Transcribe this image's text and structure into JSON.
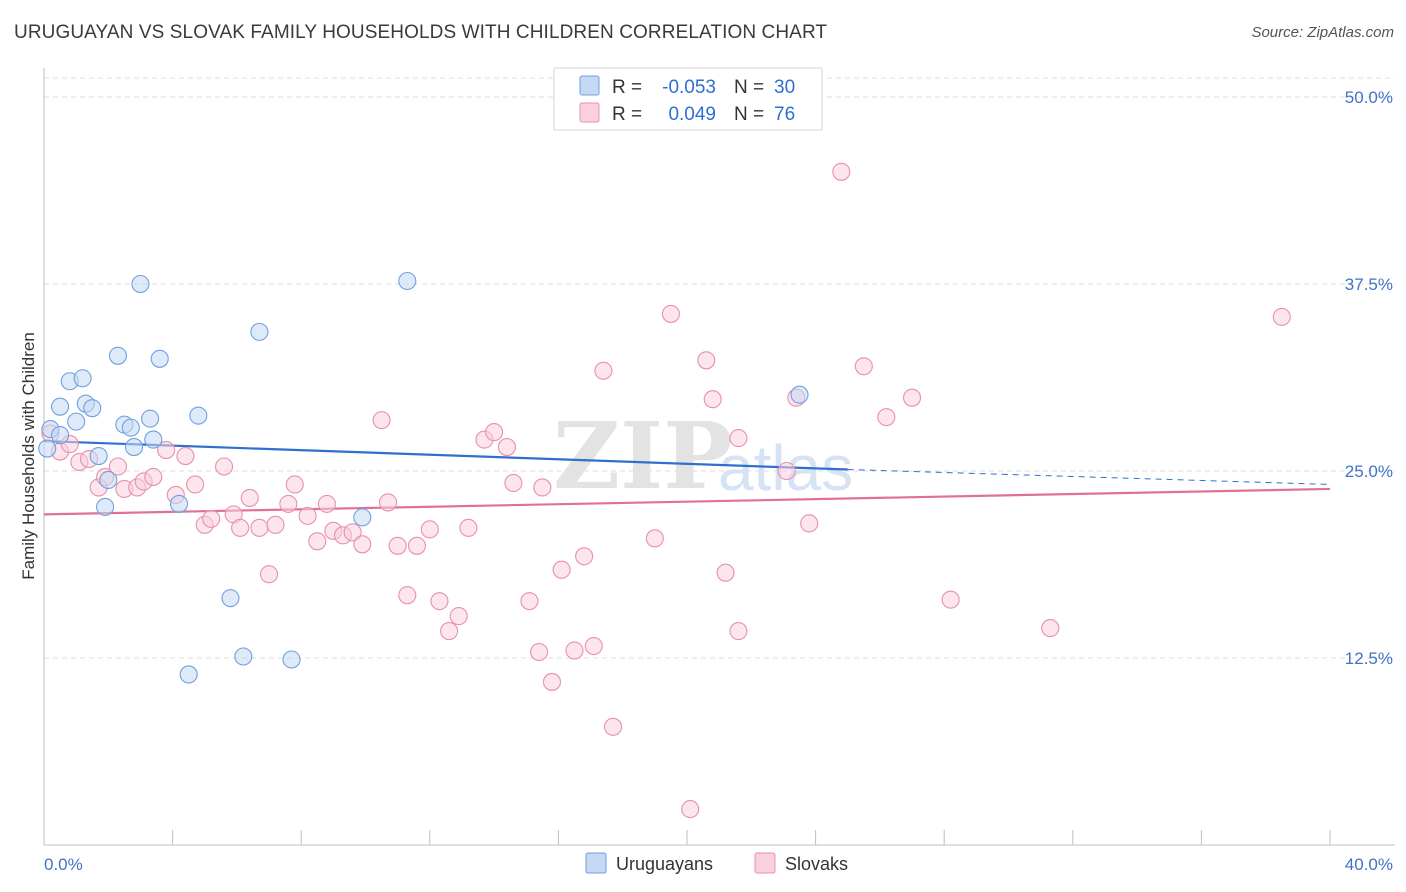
{
  "title": "URUGUAYAN VS SLOVAK FAMILY HOUSEHOLDS WITH CHILDREN CORRELATION CHART",
  "source": "Source: ZipAtlas.com",
  "watermark": {
    "part1": "ZIP",
    "part2": "atlas"
  },
  "legend": {
    "r_label": "R =",
    "n_label": "N =",
    "rows": [
      {
        "name": "Uruguayans",
        "r": "-0.053",
        "n": "30",
        "color": "#aac8f0"
      },
      {
        "name": "Slovaks",
        "r": "0.049",
        "n": "76",
        "color": "#f5b8cc"
      }
    ]
  },
  "chart_data": {
    "type": "scatter",
    "title": "URUGUAYAN VS SLOVAK FAMILY HOUSEHOLDS WITH CHILDREN CORRELATION CHART",
    "xlabel": "",
    "ylabel": "Family Households with Children",
    "xlim": [
      0,
      40
    ],
    "ylim": [
      0,
      50
    ],
    "x_tick_labels": [
      "0.0%",
      "40.0%"
    ],
    "y_ticks": [
      12.5,
      25.0,
      37.5,
      50.0
    ],
    "y_tick_labels": [
      "12.5%",
      "25.0%",
      "37.5%",
      "50.0%"
    ],
    "series": [
      {
        "name": "Uruguayans",
        "color": "#6fa0e0",
        "fill": "#c5d9f4",
        "trend": {
          "x0": 0,
          "y0": 27.0,
          "x1": 25,
          "y1": 25.1,
          "dash_to_x": 40,
          "dash_to_y": 24.1,
          "color": "#2f6fd0"
        },
        "points": [
          [
            0.1,
            26.5
          ],
          [
            0.2,
            27.8
          ],
          [
            0.5,
            27.4
          ],
          [
            0.5,
            29.3
          ],
          [
            0.8,
            31.0
          ],
          [
            1.0,
            28.3
          ],
          [
            1.2,
            31.2
          ],
          [
            1.3,
            29.5
          ],
          [
            1.5,
            29.2
          ],
          [
            1.7,
            26.0
          ],
          [
            1.9,
            22.6
          ],
          [
            2.0,
            24.4
          ],
          [
            2.3,
            32.7
          ],
          [
            2.5,
            28.1
          ],
          [
            2.7,
            27.9
          ],
          [
            2.8,
            26.6
          ],
          [
            3.0,
            37.5
          ],
          [
            3.3,
            28.5
          ],
          [
            3.4,
            27.1
          ],
          [
            3.6,
            32.5
          ],
          [
            4.2,
            22.8
          ],
          [
            4.5,
            11.4
          ],
          [
            4.8,
            28.7
          ],
          [
            5.8,
            16.5
          ],
          [
            6.2,
            12.6
          ],
          [
            6.7,
            34.3
          ],
          [
            7.7,
            12.4
          ],
          [
            9.9,
            21.9
          ],
          [
            11.3,
            37.7
          ],
          [
            23.5,
            30.1
          ]
        ]
      },
      {
        "name": "Slovaks",
        "color": "#e890ac",
        "fill": "#fad0dc",
        "trend": {
          "x0": 0,
          "y0": 22.1,
          "x1": 40,
          "y1": 23.8,
          "color": "#e07098"
        },
        "points": [
          [
            0.2,
            27.5
          ],
          [
            0.5,
            26.3
          ],
          [
            0.8,
            26.8
          ],
          [
            1.1,
            25.6
          ],
          [
            1.4,
            25.8
          ],
          [
            1.7,
            23.9
          ],
          [
            1.9,
            24.6
          ],
          [
            2.3,
            25.3
          ],
          [
            2.5,
            23.8
          ],
          [
            2.9,
            23.9
          ],
          [
            3.1,
            24.3
          ],
          [
            3.4,
            24.6
          ],
          [
            3.8,
            26.4
          ],
          [
            4.1,
            23.4
          ],
          [
            4.4,
            26.0
          ],
          [
            4.7,
            24.1
          ],
          [
            5.0,
            21.4
          ],
          [
            5.2,
            21.8
          ],
          [
            5.6,
            25.3
          ],
          [
            5.9,
            22.1
          ],
          [
            6.1,
            21.2
          ],
          [
            6.4,
            23.2
          ],
          [
            6.7,
            21.2
          ],
          [
            7.0,
            18.1
          ],
          [
            7.2,
            21.4
          ],
          [
            7.6,
            22.8
          ],
          [
            7.8,
            24.1
          ],
          [
            8.2,
            22.0
          ],
          [
            8.5,
            20.3
          ],
          [
            8.8,
            22.8
          ],
          [
            9.0,
            21.0
          ],
          [
            9.3,
            20.7
          ],
          [
            9.6,
            20.9
          ],
          [
            9.9,
            20.1
          ],
          [
            10.5,
            28.4
          ],
          [
            10.7,
            22.9
          ],
          [
            11.0,
            20.0
          ],
          [
            11.3,
            16.7
          ],
          [
            11.6,
            20.0
          ],
          [
            12.0,
            21.1
          ],
          [
            12.3,
            16.3
          ],
          [
            12.6,
            14.3
          ],
          [
            12.9,
            15.3
          ],
          [
            13.2,
            21.2
          ],
          [
            13.7,
            27.1
          ],
          [
            14.0,
            27.6
          ],
          [
            14.4,
            26.6
          ],
          [
            14.6,
            24.2
          ],
          [
            15.1,
            16.3
          ],
          [
            15.4,
            12.9
          ],
          [
            15.5,
            23.9
          ],
          [
            15.8,
            10.9
          ],
          [
            16.1,
            18.4
          ],
          [
            16.5,
            13.0
          ],
          [
            16.8,
            19.3
          ],
          [
            17.1,
            13.3
          ],
          [
            17.4,
            31.7
          ],
          [
            17.7,
            7.9
          ],
          [
            19.0,
            20.5
          ],
          [
            19.5,
            35.5
          ],
          [
            20.1,
            2.4
          ],
          [
            20.6,
            32.4
          ],
          [
            20.8,
            29.8
          ],
          [
            21.2,
            18.2
          ],
          [
            21.6,
            27.2
          ],
          [
            21.6,
            14.3
          ],
          [
            23.1,
            25.0
          ],
          [
            23.4,
            29.9
          ],
          [
            23.8,
            21.5
          ],
          [
            24.8,
            45.0
          ],
          [
            25.5,
            32.0
          ],
          [
            26.2,
            28.6
          ],
          [
            27.0,
            29.9
          ],
          [
            28.2,
            16.4
          ],
          [
            31.3,
            14.5
          ],
          [
            38.5,
            35.3
          ]
        ]
      }
    ]
  }
}
